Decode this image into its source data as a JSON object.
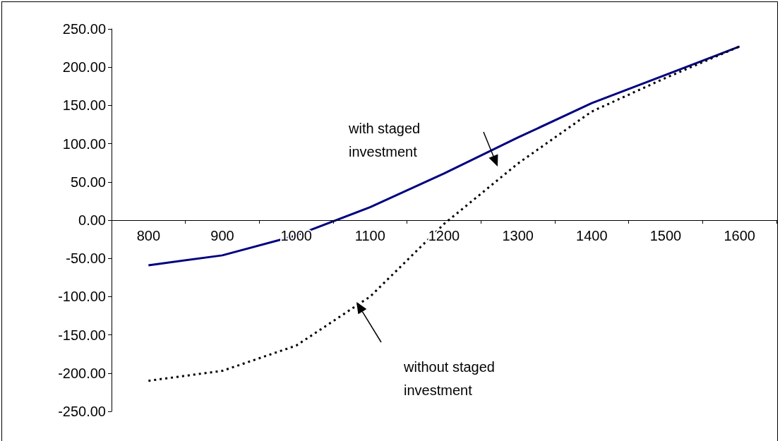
{
  "chart_data": {
    "type": "line",
    "categories": [
      "800",
      "900",
      "1000",
      "1100",
      "1200",
      "1300",
      "1400",
      "1500",
      "1600"
    ],
    "series": [
      {
        "color": "#000080",
        "line_style": "solid",
        "values": [
          -59,
          -46,
          -20,
          17,
          61,
          108,
          153,
          190,
          227
        ]
      },
      {
        "color": "#000000",
        "line_style": "dotted",
        "values": [
          -210,
          -197,
          -164,
          -100,
          -5,
          74,
          142,
          186,
          227
        ]
      }
    ],
    "ylim": [
      -250,
      250
    ],
    "yticks": [
      {
        "value": -250,
        "label": "-250.00"
      },
      {
        "value": -200,
        "label": "-200.00"
      },
      {
        "value": -150,
        "label": "-150.00"
      },
      {
        "value": -100,
        "label": "-100.00"
      },
      {
        "value": -50,
        "label": "-50.00"
      },
      {
        "value": 0,
        "label": "0.00"
      },
      {
        "value": 50,
        "label": "50.00"
      },
      {
        "value": 100,
        "label": "100.00"
      },
      {
        "value": 150,
        "label": "150.00"
      },
      {
        "value": 200,
        "label": "200.00"
      },
      {
        "value": 250,
        "label": "250.00"
      }
    ],
    "annotations": [
      "with staged\ninvestment",
      "without staged\ninvestment"
    ],
    "marker": "none"
  }
}
